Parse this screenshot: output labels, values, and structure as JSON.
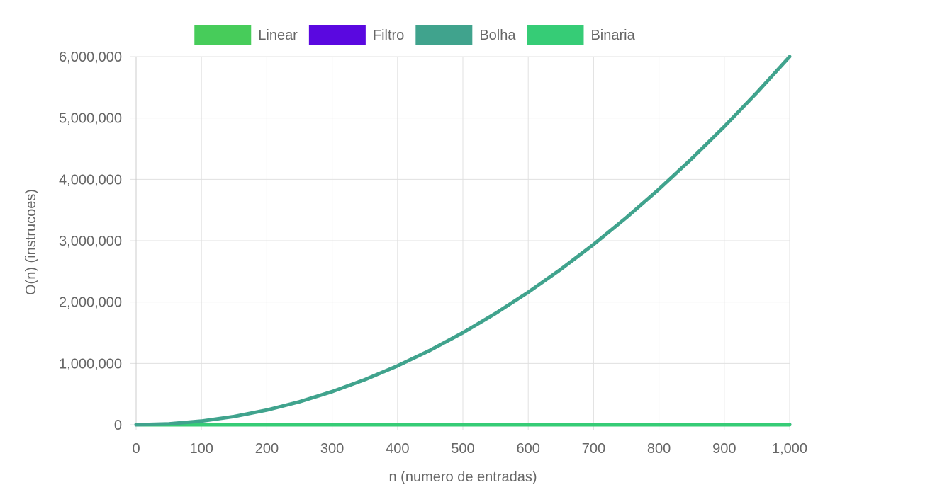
{
  "chart_data": {
    "type": "line",
    "title": "",
    "xlabel": "n (numero de entradas)",
    "ylabel": "O(n) (instrucoes)",
    "xlim": [
      0,
      1000
    ],
    "ylim": [
      0,
      6000000
    ],
    "grid": true,
    "legend_position": "top",
    "x_ticks": [
      "0",
      "100",
      "200",
      "300",
      "400",
      "500",
      "600",
      "700",
      "800",
      "900",
      "1,000"
    ],
    "y_ticks": [
      "0",
      "1,000,000",
      "2,000,000",
      "3,000,000",
      "4,000,000",
      "5,000,000",
      "6,000,000"
    ],
    "x_tick_values": [
      0,
      100,
      200,
      300,
      400,
      500,
      600,
      700,
      800,
      900,
      1000
    ],
    "y_tick_values": [
      0,
      1000000,
      2000000,
      3000000,
      4000000,
      5000000,
      6000000
    ],
    "series": [
      {
        "name": "Linear",
        "color": "#47cc5a",
        "x": [
          0,
          100,
          200,
          300,
          400,
          500,
          600,
          700,
          800,
          900,
          1000
        ],
        "values": [
          0,
          100,
          200,
          300,
          400,
          500,
          600,
          700,
          800,
          900,
          1000
        ]
      },
      {
        "name": "Filtro",
        "color": "#5a08e0",
        "x": [
          0,
          100,
          200,
          300,
          400,
          500,
          600,
          700,
          800,
          900,
          1000
        ],
        "values": [
          0,
          100,
          200,
          300,
          400,
          500,
          600,
          700,
          800,
          900,
          1000
        ]
      },
      {
        "name": "Bolha",
        "color": "#40a38d",
        "x": [
          0,
          50,
          100,
          150,
          200,
          250,
          300,
          350,
          400,
          450,
          500,
          550,
          600,
          650,
          700,
          750,
          800,
          850,
          900,
          950,
          1000
        ],
        "values": [
          0,
          15000,
          60000,
          135000,
          240000,
          375000,
          540000,
          735000,
          960000,
          1215000,
          1500000,
          1815000,
          2160000,
          2535000,
          2940000,
          3375000,
          3840000,
          4335000,
          4860000,
          5415000,
          6000000
        ]
      },
      {
        "name": "Binaria",
        "color": "#36cc76",
        "x": [
          0,
          100,
          200,
          300,
          400,
          500,
          600,
          700,
          800,
          900,
          1000
        ],
        "values": [
          0,
          7,
          8,
          8,
          9,
          9,
          9,
          9,
          10,
          10,
          10
        ]
      }
    ]
  }
}
